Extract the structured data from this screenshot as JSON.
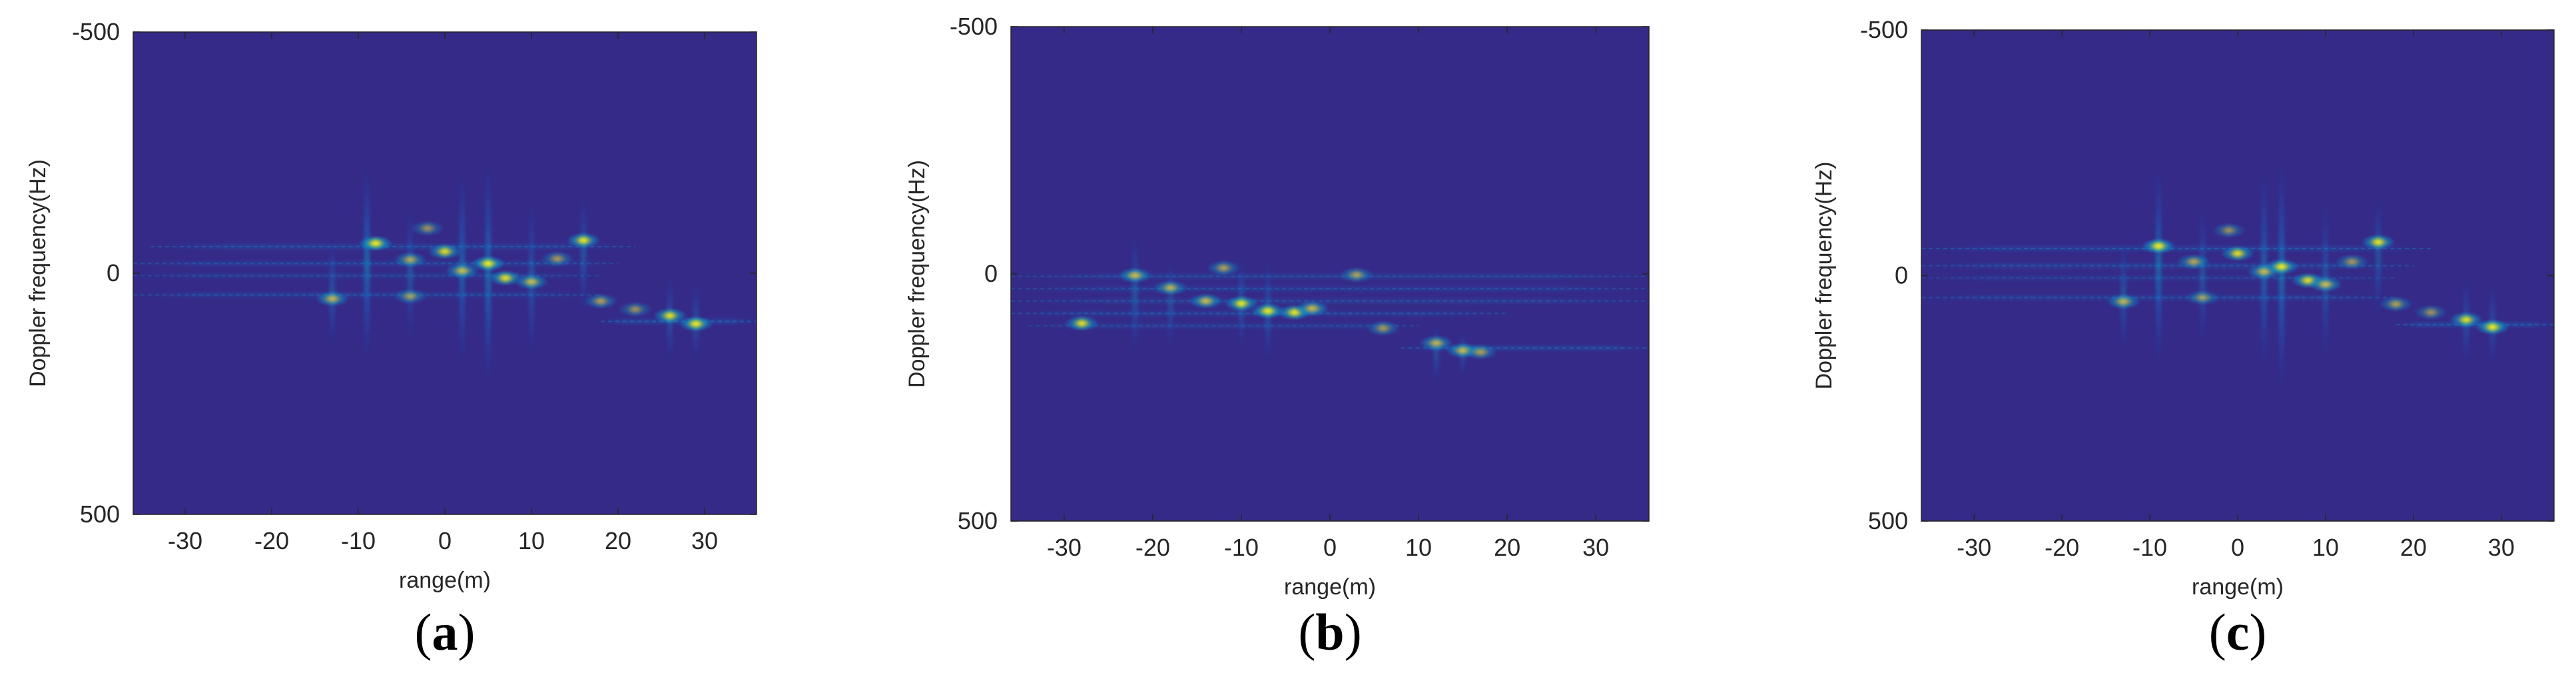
{
  "figure": {
    "subplots": [
      "a",
      "b",
      "c"
    ]
  },
  "colors": {
    "background": "#352a87",
    "colormap": [
      "#352a87",
      "#0f5cdd",
      "#1481d6",
      "#06a4ca",
      "#2eb7a4",
      "#87bf77",
      "#d1bb59",
      "#fec832",
      "#f9fb0e"
    ]
  },
  "chart_data": [
    {
      "type": "heatmap",
      "panel": "(a)",
      "panel_letter": "a",
      "xlabel": "range(m)",
      "ylabel": "Doppler frequency(Hz)",
      "xlim": [
        -36,
        36
      ],
      "ylim": [
        -500,
        500
      ],
      "y_reversed": true,
      "xticks": [
        -30,
        -20,
        -10,
        0,
        10,
        20,
        30
      ],
      "xtick_labels": [
        "-30",
        "-20",
        "-10",
        "0",
        "10",
        "20",
        "30"
      ],
      "yticks": [
        -500,
        0,
        500
      ],
      "ytick_labels": [
        "-500",
        "0",
        "500"
      ],
      "scatterers": [
        {
          "x": -13,
          "y": 53,
          "a": 0.75
        },
        {
          "x": -8,
          "y": -62,
          "a": 1.0
        },
        {
          "x": -4,
          "y": -28,
          "a": 0.65
        },
        {
          "x": -4,
          "y": 48,
          "a": 0.55
        },
        {
          "x": -2,
          "y": -93,
          "a": 0.5
        },
        {
          "x": 0,
          "y": -45,
          "a": 0.85
        },
        {
          "x": 2,
          "y": -5,
          "a": 0.8
        },
        {
          "x": 5,
          "y": -20,
          "a": 0.95
        },
        {
          "x": 7,
          "y": 10,
          "a": 0.85
        },
        {
          "x": 10,
          "y": 18,
          "a": 0.8
        },
        {
          "x": 13,
          "y": -30,
          "a": 0.55
        },
        {
          "x": 16,
          "y": -68,
          "a": 0.9
        },
        {
          "x": 18,
          "y": 58,
          "a": 0.6
        },
        {
          "x": 22,
          "y": 75,
          "a": 0.5
        },
        {
          "x": 26,
          "y": 88,
          "a": 0.85
        },
        {
          "x": 29,
          "y": 105,
          "a": 0.95
        }
      ],
      "horizontal_bands": [
        {
          "y": -55,
          "x_start": -34,
          "x_end": 22,
          "a": 0.35
        },
        {
          "y": -20,
          "x_start": -36,
          "x_end": 20,
          "a": 0.3
        },
        {
          "y": 5,
          "x_start": -36,
          "x_end": 18,
          "a": 0.25
        },
        {
          "y": 45,
          "x_start": -36,
          "x_end": 18,
          "a": 0.3
        },
        {
          "y": 100,
          "x_start": 18,
          "x_end": 36,
          "a": 0.4
        }
      ],
      "vertical_streaks": [
        {
          "x": -13,
          "y_center": 40,
          "half_len": 110,
          "a": 0.35
        },
        {
          "x": -9,
          "y_center": -20,
          "half_len": 200,
          "a": 0.5
        },
        {
          "x": -4,
          "y_center": 0,
          "half_len": 140,
          "a": 0.35
        },
        {
          "x": 2,
          "y_center": -10,
          "half_len": 200,
          "a": 0.45
        },
        {
          "x": 5,
          "y_center": 0,
          "half_len": 230,
          "a": 0.5
        },
        {
          "x": 10,
          "y_center": 10,
          "half_len": 160,
          "a": 0.35
        },
        {
          "x": 16,
          "y_center": -40,
          "half_len": 120,
          "a": 0.35
        },
        {
          "x": 26,
          "y_center": 95,
          "half_len": 90,
          "a": 0.3
        },
        {
          "x": 29,
          "y_center": 100,
          "half_len": 80,
          "a": 0.3
        }
      ]
    },
    {
      "type": "heatmap",
      "panel": "(b)",
      "panel_letter": "b",
      "xlabel": "range(m)",
      "ylabel": "Doppler frequency(Hz)",
      "xlim": [
        -36,
        36
      ],
      "ylim": [
        -500,
        500
      ],
      "y_reversed": true,
      "xticks": [
        -30,
        -20,
        -10,
        0,
        10,
        20,
        30
      ],
      "xtick_labels": [
        "-30",
        "-20",
        "-10",
        "0",
        "10",
        "20",
        "30"
      ],
      "yticks": [
        -500,
        0,
        500
      ],
      "ytick_labels": [
        "-500",
        "0",
        "500"
      ],
      "scatterers": [
        {
          "x": -28,
          "y": 100,
          "a": 0.85
        },
        {
          "x": -22,
          "y": 3,
          "a": 0.8
        },
        {
          "x": -18,
          "y": 28,
          "a": 0.7
        },
        {
          "x": -14,
          "y": 55,
          "a": 0.8
        },
        {
          "x": -12,
          "y": -12,
          "a": 0.6
        },
        {
          "x": -10,
          "y": 60,
          "a": 0.9
        },
        {
          "x": -7,
          "y": 75,
          "a": 0.95
        },
        {
          "x": -4,
          "y": 78,
          "a": 0.9
        },
        {
          "x": -2,
          "y": 70,
          "a": 0.8
        },
        {
          "x": 3,
          "y": 2,
          "a": 0.6
        },
        {
          "x": 6,
          "y": 110,
          "a": 0.55
        },
        {
          "x": 12,
          "y": 140,
          "a": 0.75
        },
        {
          "x": 15,
          "y": 155,
          "a": 0.8
        },
        {
          "x": 17,
          "y": 158,
          "a": 0.6
        }
      ],
      "horizontal_bands": [
        {
          "y": 5,
          "x_start": -36,
          "x_end": 36,
          "a": 0.3
        },
        {
          "y": 30,
          "x_start": -36,
          "x_end": 36,
          "a": 0.3
        },
        {
          "y": 55,
          "x_start": -36,
          "x_end": 36,
          "a": 0.28
        },
        {
          "y": 80,
          "x_start": -36,
          "x_end": 20,
          "a": 0.3
        },
        {
          "y": 105,
          "x_start": -34,
          "x_end": 10,
          "a": 0.25
        },
        {
          "y": 150,
          "x_start": 8,
          "x_end": 36,
          "a": 0.35
        }
      ],
      "vertical_streaks": [
        {
          "x": -22,
          "y_center": 40,
          "half_len": 120,
          "a": 0.35
        },
        {
          "x": -18,
          "y_center": 60,
          "half_len": 90,
          "a": 0.3
        },
        {
          "x": -10,
          "y_center": 60,
          "half_len": 90,
          "a": 0.35
        },
        {
          "x": -7,
          "y_center": 75,
          "half_len": 100,
          "a": 0.35
        },
        {
          "x": 12,
          "y_center": 160,
          "half_len": 60,
          "a": 0.3
        },
        {
          "x": 15,
          "y_center": 160,
          "half_len": 45,
          "a": 0.3
        }
      ]
    },
    {
      "type": "heatmap",
      "panel": "(c)",
      "panel_letter": "c",
      "xlabel": "range(m)",
      "ylabel": "Doppler frequency(Hz)",
      "xlim": [
        -36,
        36
      ],
      "ylim": [
        -500,
        500
      ],
      "y_reversed": true,
      "xticks": [
        -30,
        -20,
        -10,
        0,
        10,
        20,
        30
      ],
      "xtick_labels": [
        "-30",
        "-20",
        "-10",
        "0",
        "10",
        "20",
        "30"
      ],
      "yticks": [
        -500,
        0,
        500
      ],
      "ytick_labels": [
        "-500",
        "0",
        "500"
      ],
      "scatterers": [
        {
          "x": -13,
          "y": 53,
          "a": 0.75
        },
        {
          "x": -9,
          "y": -60,
          "a": 1.0
        },
        {
          "x": -5,
          "y": -28,
          "a": 0.65
        },
        {
          "x": -4,
          "y": 45,
          "a": 0.55
        },
        {
          "x": -1,
          "y": -92,
          "a": 0.5
        },
        {
          "x": 0,
          "y": -45,
          "a": 0.85
        },
        {
          "x": 3,
          "y": -8,
          "a": 0.8
        },
        {
          "x": 5,
          "y": -18,
          "a": 0.95
        },
        {
          "x": 8,
          "y": 10,
          "a": 0.85
        },
        {
          "x": 10,
          "y": 18,
          "a": 0.8
        },
        {
          "x": 13,
          "y": -28,
          "a": 0.55
        },
        {
          "x": 16,
          "y": -68,
          "a": 0.9
        },
        {
          "x": 18,
          "y": 58,
          "a": 0.6
        },
        {
          "x": 22,
          "y": 75,
          "a": 0.5
        },
        {
          "x": 26,
          "y": 90,
          "a": 0.85
        },
        {
          "x": 29,
          "y": 105,
          "a": 0.95
        }
      ],
      "horizontal_bands": [
        {
          "y": -55,
          "x_start": -36,
          "x_end": 22,
          "a": 0.35
        },
        {
          "y": -20,
          "x_start": -36,
          "x_end": 20,
          "a": 0.3
        },
        {
          "y": 5,
          "x_start": -36,
          "x_end": 18,
          "a": 0.22
        },
        {
          "y": 45,
          "x_start": -36,
          "x_end": 18,
          "a": 0.3
        },
        {
          "y": 100,
          "x_start": 18,
          "x_end": 36,
          "a": 0.4
        }
      ],
      "vertical_streaks": [
        {
          "x": -13,
          "y_center": 40,
          "half_len": 110,
          "a": 0.35
        },
        {
          "x": -9,
          "y_center": -20,
          "half_len": 200,
          "a": 0.5
        },
        {
          "x": -4,
          "y_center": 0,
          "half_len": 140,
          "a": 0.35
        },
        {
          "x": 3,
          "y_center": -10,
          "half_len": 200,
          "a": 0.45
        },
        {
          "x": 5,
          "y_center": 0,
          "half_len": 230,
          "a": 0.5
        },
        {
          "x": 10,
          "y_center": 10,
          "half_len": 160,
          "a": 0.35
        },
        {
          "x": 16,
          "y_center": -40,
          "half_len": 120,
          "a": 0.35
        },
        {
          "x": 26,
          "y_center": 95,
          "half_len": 90,
          "a": 0.3
        },
        {
          "x": 29,
          "y_center": 100,
          "half_len": 80,
          "a": 0.3
        }
      ]
    }
  ]
}
